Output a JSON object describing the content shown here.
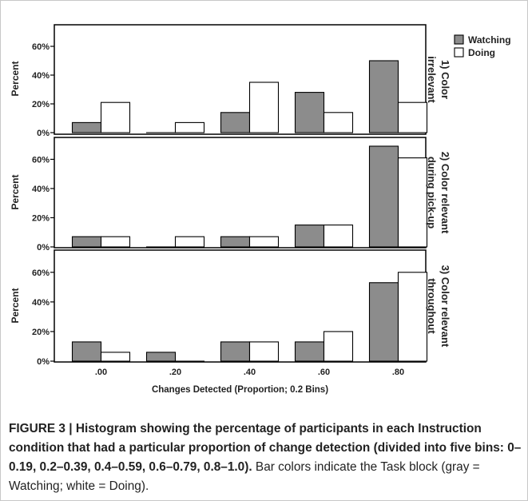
{
  "chart_data": {
    "type": "bar",
    "categories": [
      ".00",
      ".20",
      ".40",
      ".60",
      ".80"
    ],
    "xlabel": "Changes Detected (Proportion; 0.2 Bins)",
    "ylabel": "Percent",
    "ylim": [
      0,
      75
    ],
    "y_ticks": [
      0,
      20,
      40,
      60
    ],
    "y_tick_labels": [
      "0%",
      "20%",
      "40%",
      "60%"
    ],
    "legend_position": "top-right",
    "series_colors": {
      "Watching": "#8c8c8c",
      "Doing": "#ffffff"
    },
    "series_names": [
      "Watching",
      "Doing"
    ],
    "panels": [
      {
        "label": "1) Color irrelevant",
        "label_lines": [
          "1) Color",
          "irrelevant"
        ],
        "series": [
          {
            "name": "Watching",
            "values": [
              7,
              0,
              14,
              28,
              50
            ]
          },
          {
            "name": "Doing",
            "values": [
              21,
              7,
              35,
              14,
              21
            ]
          }
        ]
      },
      {
        "label": "2) Color relevant during pick-up",
        "label_lines": [
          "2) Color relevant",
          "during pick-up"
        ],
        "series": [
          {
            "name": "Watching",
            "values": [
              7,
              0,
              7,
              15,
              69
            ]
          },
          {
            "name": "Doing",
            "values": [
              7,
              7,
              7,
              15,
              61
            ]
          }
        ]
      },
      {
        "label": "3) Color relevant throughout",
        "label_lines": [
          "3) Color relevant",
          "throughout"
        ],
        "series": [
          {
            "name": "Watching",
            "values": [
              13,
              6,
              13,
              13,
              53
            ]
          },
          {
            "name": "Doing",
            "values": [
              6,
              0,
              13,
              20,
              60
            ]
          }
        ]
      }
    ]
  },
  "caption": {
    "bold_text": "FIGURE 3 | Histogram showing the percentage of participants in each Instruction condition that had a particular proportion of change detection (divided into five bins: 0–0.19, 0.2–0.39, 0.4–0.59, 0.6–0.79, 0.8–1.0).",
    "normal_text": " Bar colors indicate the Task block (gray = Watching; white = Doing)."
  }
}
